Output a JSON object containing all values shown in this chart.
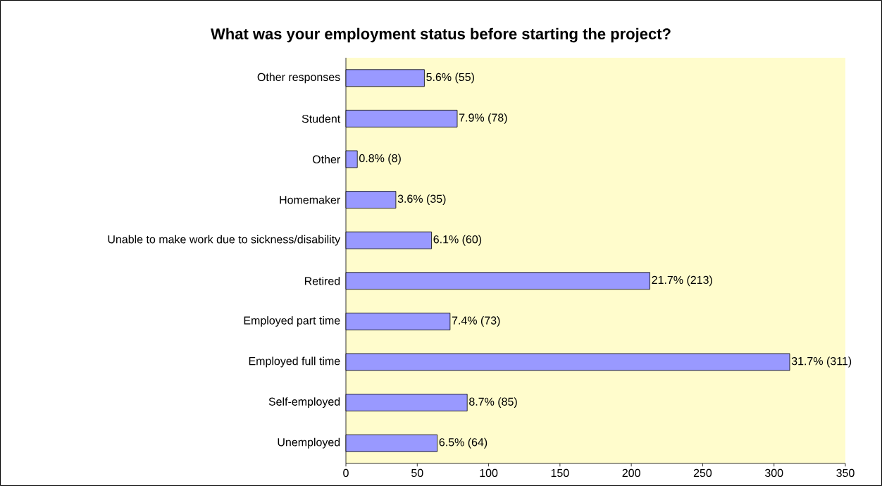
{
  "chart_data": {
    "type": "bar",
    "orientation": "horizontal",
    "title": "What was your employment status before starting the project?",
    "categories": [
      "Other responses",
      "Student",
      "Other",
      "Homemaker",
      "Unable to make work due to sickness/disability",
      "Retired",
      "Employed part time",
      "Employed full time",
      "Self-employed",
      "Unemployed"
    ],
    "values": [
      55,
      78,
      8,
      35,
      60,
      213,
      73,
      311,
      85,
      64
    ],
    "value_labels": [
      "5.6% (55)",
      "7.9% (78)",
      "0.8% (8)",
      "3.6% (35)",
      "6.1% (60)",
      "21.7% (213)",
      "7.4% (73)",
      "31.7% (311)",
      "8.7% (85)",
      "6.5% (64)"
    ],
    "color": "#9999ff",
    "xlim": [
      0,
      350
    ],
    "xticks": [
      0,
      50,
      100,
      150,
      200,
      250,
      300,
      350
    ]
  }
}
